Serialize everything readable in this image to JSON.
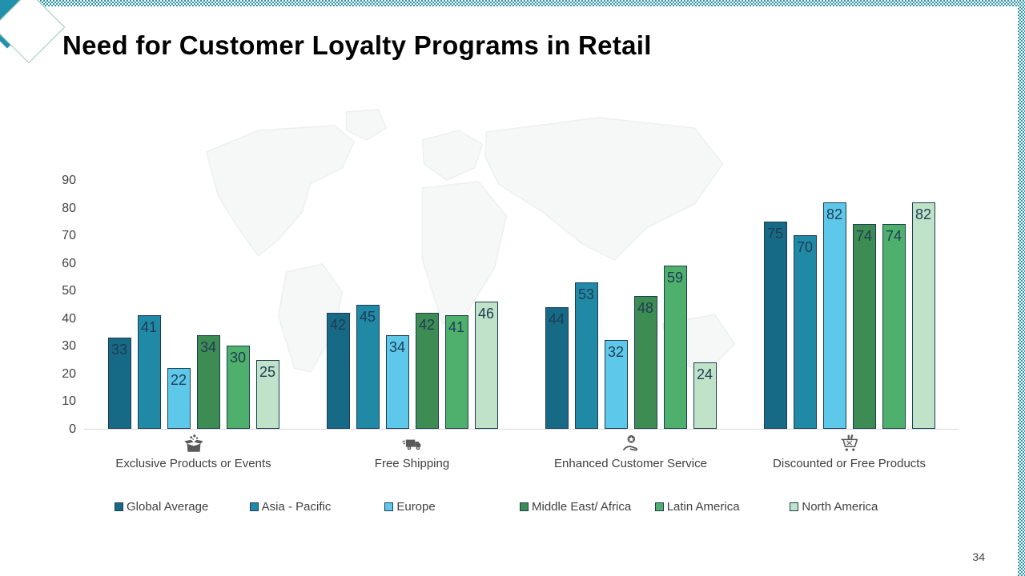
{
  "slide": {
    "title": "Need for Customer Loyalty Programs in Retail",
    "page_number": "34"
  },
  "theme": {
    "accent_teal": "#2191ac",
    "pattern_teal": "#2e93ad",
    "diamond_outline": "#9ccab5",
    "bar_border": "#1c3e52",
    "bar_label": "#1f3b53",
    "axis_text": "#404040",
    "icon_color": "#595959",
    "baseline": "#d9d9d9",
    "title_color": "#000000"
  },
  "chart_data": {
    "type": "bar",
    "title": "Need for Customer Loyalty Programs in Retail",
    "xlabel": "",
    "ylabel": "",
    "ylim": [
      0,
      90
    ],
    "yticks": [
      0,
      10,
      20,
      30,
      40,
      50,
      60,
      70,
      80,
      90
    ],
    "grid": false,
    "legend_position": "bottom",
    "categories": [
      "Exclusive Products or Events",
      "Free Shipping",
      "Enhanced Customer Service",
      "Discounted or Free Products"
    ],
    "category_icons": [
      "gift-box-icon",
      "delivery-truck-icon",
      "hand-star-icon",
      "shopping-cart-icon"
    ],
    "series": [
      {
        "name": "Global Average",
        "color": "#176a85",
        "values": [
          33,
          42,
          44,
          75
        ]
      },
      {
        "name": "Asia - Pacific",
        "color": "#2089a6",
        "values": [
          41,
          45,
          53,
          70
        ]
      },
      {
        "name": "Europe",
        "color": "#5ec8ea",
        "values": [
          22,
          34,
          32,
          82
        ]
      },
      {
        "name": "Middle East/ Africa",
        "color": "#3d8c54",
        "values": [
          34,
          42,
          48,
          74
        ]
      },
      {
        "name": "Latin America",
        "color": "#4eb06c",
        "values": [
          30,
          41,
          59,
          74
        ]
      },
      {
        "name": "North America",
        "color": "#bfe2c9",
        "values": [
          25,
          46,
          24,
          82
        ]
      }
    ]
  }
}
